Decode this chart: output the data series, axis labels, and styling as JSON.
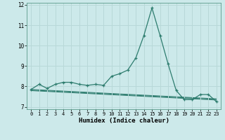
{
  "xlabel": "Humidex (Indice chaleur)",
  "background_color": "#cce9ea",
  "grid_color": "#b8d8d8",
  "line_color": "#2d7c6e",
  "xlim": [
    -0.5,
    23.5
  ],
  "ylim": [
    6.88,
    12.1
  ],
  "xticks": [
    0,
    1,
    2,
    3,
    4,
    5,
    6,
    7,
    8,
    9,
    10,
    11,
    12,
    13,
    14,
    15,
    16,
    17,
    18,
    19,
    20,
    21,
    22,
    23
  ],
  "yticks": [
    7,
    8,
    9,
    10,
    11,
    12
  ],
  "main_x": [
    0,
    1,
    2,
    3,
    4,
    5,
    6,
    7,
    8,
    9,
    10,
    11,
    12,
    13,
    14,
    15,
    16,
    17,
    18,
    19,
    20,
    21,
    22,
    23
  ],
  "main_y": [
    7.85,
    8.1,
    7.9,
    8.1,
    8.2,
    8.2,
    8.1,
    8.05,
    8.1,
    8.05,
    8.5,
    8.62,
    8.8,
    9.4,
    10.5,
    11.85,
    10.5,
    9.1,
    7.8,
    7.35,
    7.35,
    7.6,
    7.6,
    7.25
  ],
  "line2_x": [
    0,
    1,
    2,
    3,
    4,
    5,
    6,
    7,
    8,
    9,
    10,
    11,
    12,
    13,
    14,
    15,
    16,
    17,
    18,
    19,
    20,
    21,
    22,
    23
  ],
  "line2_y": [
    7.85,
    7.83,
    7.81,
    7.79,
    7.77,
    7.75,
    7.73,
    7.71,
    7.69,
    7.67,
    7.65,
    7.63,
    7.61,
    7.59,
    7.57,
    7.55,
    7.53,
    7.51,
    7.49,
    7.47,
    7.45,
    7.43,
    7.41,
    7.39
  ],
  "line3_x": [
    0,
    1,
    2,
    3,
    4,
    5,
    6,
    7,
    8,
    9,
    10,
    11,
    12,
    13,
    14,
    15,
    16,
    17,
    18,
    19,
    20,
    21,
    22,
    23
  ],
  "line3_y": [
    7.82,
    7.8,
    7.78,
    7.76,
    7.74,
    7.72,
    7.7,
    7.68,
    7.66,
    7.64,
    7.62,
    7.6,
    7.58,
    7.56,
    7.54,
    7.52,
    7.5,
    7.48,
    7.46,
    7.44,
    7.42,
    7.4,
    7.38,
    7.36
  ],
  "line4_x": [
    0,
    1,
    2,
    3,
    4,
    5,
    6,
    7,
    8,
    9,
    10,
    11,
    12,
    13,
    14,
    15,
    16,
    17,
    18,
    19,
    20,
    21,
    22,
    23
  ],
  "line4_y": [
    7.79,
    7.77,
    7.75,
    7.73,
    7.71,
    7.69,
    7.67,
    7.65,
    7.63,
    7.61,
    7.59,
    7.57,
    7.55,
    7.53,
    7.51,
    7.49,
    7.47,
    7.45,
    7.43,
    7.41,
    7.39,
    7.37,
    7.35,
    7.33
  ]
}
